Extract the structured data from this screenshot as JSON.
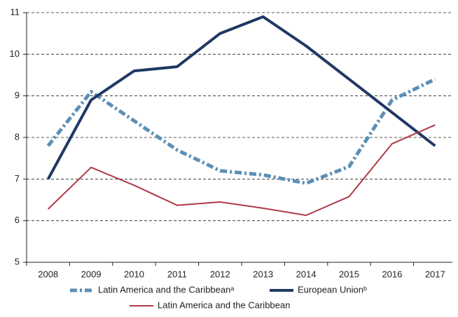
{
  "chart_data": {
    "type": "line",
    "categories": [
      "2008",
      "2009",
      "2010",
      "2011",
      "2012",
      "2013",
      "2014",
      "2015",
      "2016",
      "2017"
    ],
    "series": [
      {
        "name": "Latin America and the Caribbeanᵃ",
        "color": "#5b8fb5",
        "style": "dashdot",
        "values": [
          7.8,
          9.1,
          8.4,
          7.7,
          7.2,
          7.1,
          6.9,
          7.3,
          8.9,
          9.4
        ]
      },
      {
        "name": "European Unionᵇ",
        "color": "#1f3864",
        "style": "solid",
        "values": [
          7.0,
          8.9,
          9.6,
          9.7,
          10.5,
          10.9,
          10.2,
          9.4,
          8.6,
          7.8
        ]
      },
      {
        "name": "Latin America and the Caribbean",
        "color": "#b03a48",
        "style": "thin",
        "values": [
          6.28,
          7.28,
          6.85,
          6.37,
          6.45,
          6.3,
          6.13,
          6.58,
          7.85,
          8.3
        ]
      }
    ],
    "ylim": [
      5,
      11
    ],
    "yticks": [
      5,
      6,
      7,
      8,
      9,
      10,
      11
    ],
    "grid": true
  }
}
